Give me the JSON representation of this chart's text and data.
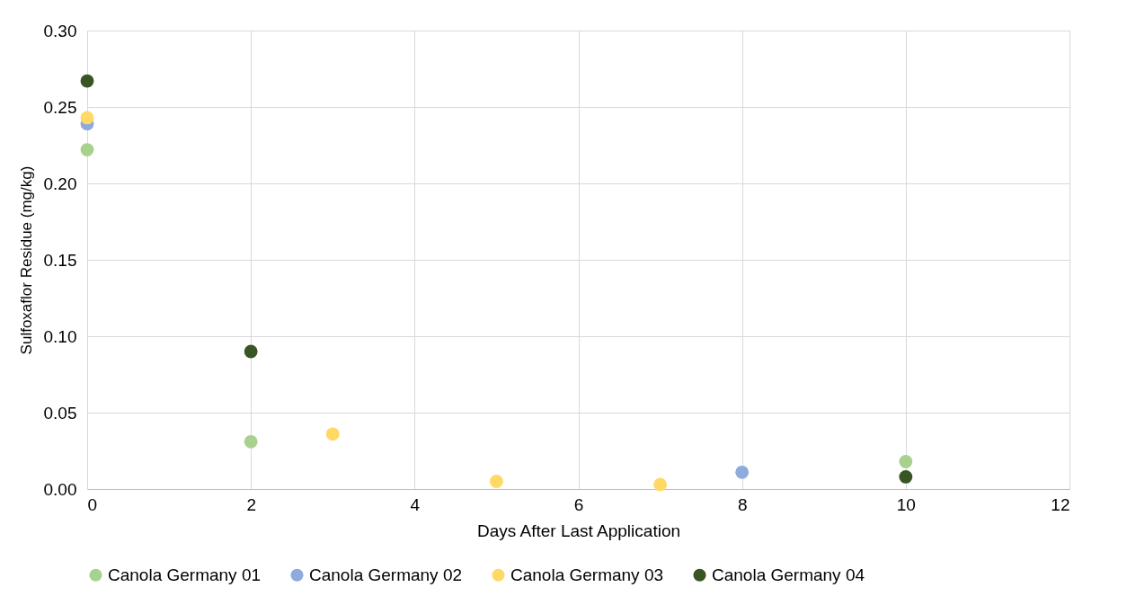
{
  "chart_data": {
    "type": "scatter",
    "xlabel": "Days After Last Application",
    "ylabel": "Sulfoxaflor Residue (mg/kg)",
    "xlim": [
      0,
      12
    ],
    "xticks": [
      0,
      2,
      4,
      6,
      8,
      10,
      12
    ],
    "ylim": [
      0,
      0.3
    ],
    "yticks": [
      {
        "value": 0,
        "label": "0.00"
      },
      {
        "value": 0.05,
        "label": "0.05"
      },
      {
        "value": 0.1,
        "label": "0.10"
      },
      {
        "value": 0.15,
        "label": "0.15"
      },
      {
        "value": 0.2,
        "label": "0.20"
      },
      {
        "value": 0.25,
        "label": "0.25"
      },
      {
        "value": 0.3,
        "label": "0.30"
      }
    ],
    "grid": true,
    "legend": "bottom",
    "marker": "circle",
    "series": [
      {
        "name": "Canola Germany 01",
        "color": "#a9d18e",
        "x": [
          0,
          2,
          10
        ],
        "values": [
          0.222,
          0.031,
          0.018
        ]
      },
      {
        "name": "Canola Germany 02",
        "color": "#8faadc",
        "x": [
          0,
          8
        ],
        "values": [
          0.239,
          0.011
        ]
      },
      {
        "name": "Canola Germany 03",
        "color": "#ffd966",
        "x": [
          0,
          3,
          5,
          7
        ],
        "values": [
          0.243,
          0.036,
          0.005,
          0.003
        ]
      },
      {
        "name": "Canola Germany 04",
        "color": "#375623",
        "x": [
          0,
          2,
          10
        ],
        "values": [
          0.267,
          0.09,
          0.008
        ]
      }
    ]
  }
}
